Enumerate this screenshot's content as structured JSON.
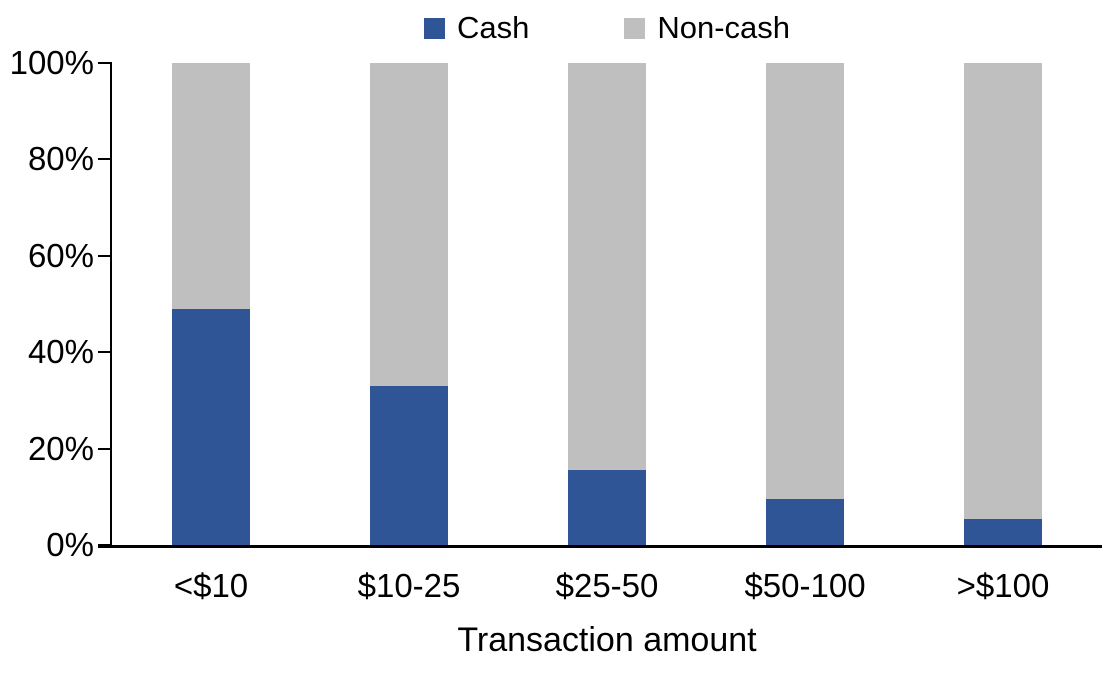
{
  "chart_data": {
    "type": "bar",
    "stacked": true,
    "percent_stacked": true,
    "title": "",
    "xlabel": "Transaction amount",
    "ylabel": "",
    "categories": [
      "<$10",
      "$10-25",
      "$25-50",
      "$50-100",
      ">$100"
    ],
    "series": [
      {
        "name": "Cash",
        "color": "#2F5597",
        "values": [
          49,
          33,
          15.5,
          9.5,
          5.5
        ]
      },
      {
        "name": "Non-cash",
        "color": "#BFBFBF",
        "values": [
          51,
          67,
          84.5,
          90.5,
          94.5
        ]
      }
    ],
    "ylim": [
      0,
      100
    ],
    "yticks": [
      {
        "value": 0,
        "label": "0%"
      },
      {
        "value": 20,
        "label": "20%"
      },
      {
        "value": 40,
        "label": "40%"
      },
      {
        "value": 60,
        "label": "60%"
      },
      {
        "value": 80,
        "label": "80%"
      },
      {
        "value": 100,
        "label": "100%"
      }
    ],
    "grid": false,
    "legend_position": "top-center",
    "colors": {
      "axis": "#000000",
      "text": "#000000",
      "background": "#FFFFFF"
    }
  }
}
